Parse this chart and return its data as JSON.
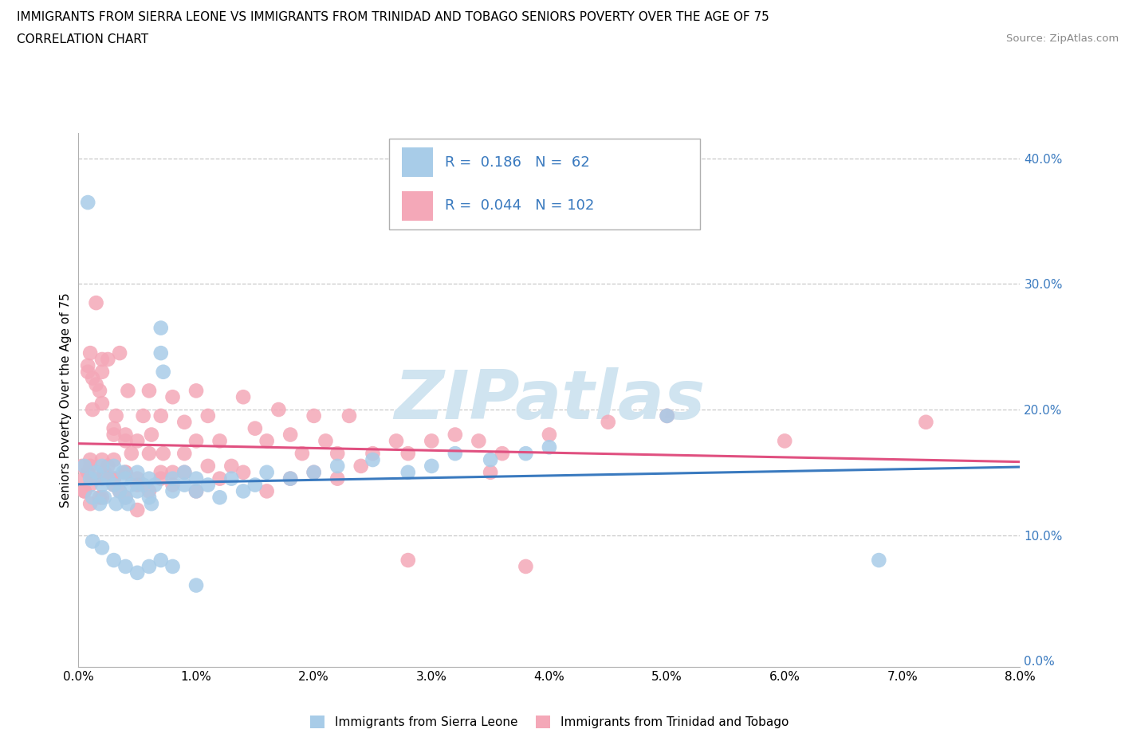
{
  "title_line1": "IMMIGRANTS FROM SIERRA LEONE VS IMMIGRANTS FROM TRINIDAD AND TOBAGO SENIORS POVERTY OVER THE AGE OF 75",
  "title_line2": "CORRELATION CHART",
  "source_text": "Source: ZipAtlas.com",
  "ylabel": "Seniors Poverty Over the Age of 75",
  "legend_label1": "Immigrants from Sierra Leone",
  "legend_label2": "Immigrants from Trinidad and Tobago",
  "R1": 0.186,
  "N1": 62,
  "R2": 0.044,
  "N2": 102,
  "color1": "#a8cce8",
  "color2": "#f4a8b8",
  "trend1_color": "#3a7abf",
  "trend2_color": "#e05080",
  "xlim": [
    0.0,
    0.08
  ],
  "ylim": [
    -0.005,
    0.42
  ],
  "xticks": [
    0.0,
    0.01,
    0.02,
    0.03,
    0.04,
    0.05,
    0.06,
    0.07,
    0.08
  ],
  "yticks": [
    0.0,
    0.1,
    0.2,
    0.3,
    0.4
  ],
  "watermark": "ZIPatlas",
  "watermark_color": "#d0e4f0",
  "sierra_leone_x": [
    0.0005,
    0.001,
    0.0012,
    0.0015,
    0.0018,
    0.002,
    0.002,
    0.0022,
    0.0025,
    0.003,
    0.003,
    0.0032,
    0.0035,
    0.0038,
    0.004,
    0.004,
    0.0042,
    0.0045,
    0.005,
    0.005,
    0.0055,
    0.006,
    0.006,
    0.0062,
    0.0065,
    0.007,
    0.007,
    0.0072,
    0.008,
    0.008,
    0.009,
    0.009,
    0.01,
    0.01,
    0.011,
    0.012,
    0.013,
    0.014,
    0.015,
    0.016,
    0.018,
    0.02,
    0.022,
    0.025,
    0.028,
    0.03,
    0.032,
    0.035,
    0.038,
    0.04,
    0.0008,
    0.0012,
    0.002,
    0.003,
    0.004,
    0.005,
    0.006,
    0.007,
    0.008,
    0.01,
    0.05,
    0.068
  ],
  "sierra_leone_y": [
    0.155,
    0.145,
    0.13,
    0.15,
    0.125,
    0.14,
    0.155,
    0.13,
    0.145,
    0.155,
    0.14,
    0.125,
    0.135,
    0.15,
    0.13,
    0.145,
    0.125,
    0.14,
    0.135,
    0.15,
    0.14,
    0.13,
    0.145,
    0.125,
    0.14,
    0.245,
    0.265,
    0.23,
    0.135,
    0.145,
    0.14,
    0.15,
    0.135,
    0.145,
    0.14,
    0.13,
    0.145,
    0.135,
    0.14,
    0.15,
    0.145,
    0.15,
    0.155,
    0.16,
    0.15,
    0.155,
    0.165,
    0.16,
    0.165,
    0.17,
    0.365,
    0.095,
    0.09,
    0.08,
    0.075,
    0.07,
    0.075,
    0.08,
    0.075,
    0.06,
    0.195,
    0.08
  ],
  "trinidad_x": [
    0.0003,
    0.0005,
    0.0008,
    0.001,
    0.001,
    0.0012,
    0.0015,
    0.0018,
    0.002,
    0.002,
    0.0022,
    0.0025,
    0.003,
    0.003,
    0.0032,
    0.0035,
    0.004,
    0.004,
    0.0042,
    0.0045,
    0.005,
    0.005,
    0.0055,
    0.006,
    0.006,
    0.0062,
    0.007,
    0.007,
    0.0072,
    0.008,
    0.008,
    0.009,
    0.009,
    0.01,
    0.01,
    0.011,
    0.011,
    0.012,
    0.013,
    0.014,
    0.015,
    0.016,
    0.017,
    0.018,
    0.019,
    0.02,
    0.021,
    0.022,
    0.023,
    0.025,
    0.027,
    0.028,
    0.03,
    0.032,
    0.034,
    0.036,
    0.038,
    0.04,
    0.045,
    0.05,
    0.0005,
    0.001,
    0.0015,
    0.002,
    0.0025,
    0.003,
    0.0035,
    0.004,
    0.005,
    0.006,
    0.007,
    0.008,
    0.009,
    0.01,
    0.012,
    0.014,
    0.016,
    0.018,
    0.02,
    0.022,
    0.024,
    0.0008,
    0.0012,
    0.0018,
    0.002,
    0.003,
    0.004,
    0.005,
    0.001,
    0.0005,
    0.001,
    0.0008,
    0.002,
    0.003,
    0.0015,
    0.002,
    0.003,
    0.004,
    0.06,
    0.072,
    0.035,
    0.028
  ],
  "trinidad_y": [
    0.155,
    0.145,
    0.15,
    0.16,
    0.14,
    0.2,
    0.22,
    0.13,
    0.145,
    0.16,
    0.15,
    0.24,
    0.16,
    0.14,
    0.195,
    0.245,
    0.18,
    0.15,
    0.215,
    0.165,
    0.175,
    0.14,
    0.195,
    0.165,
    0.215,
    0.18,
    0.15,
    0.195,
    0.165,
    0.21,
    0.15,
    0.19,
    0.165,
    0.175,
    0.215,
    0.155,
    0.195,
    0.175,
    0.155,
    0.21,
    0.185,
    0.175,
    0.2,
    0.18,
    0.165,
    0.195,
    0.175,
    0.165,
    0.195,
    0.165,
    0.175,
    0.165,
    0.175,
    0.18,
    0.175,
    0.165,
    0.075,
    0.18,
    0.19,
    0.195,
    0.135,
    0.155,
    0.145,
    0.13,
    0.155,
    0.145,
    0.135,
    0.15,
    0.145,
    0.135,
    0.145,
    0.14,
    0.15,
    0.135,
    0.145,
    0.15,
    0.135,
    0.145,
    0.15,
    0.145,
    0.155,
    0.235,
    0.225,
    0.215,
    0.205,
    0.185,
    0.175,
    0.12,
    0.125,
    0.135,
    0.245,
    0.23,
    0.23,
    0.18,
    0.285,
    0.24,
    0.145,
    0.13,
    0.175,
    0.19,
    0.15,
    0.08
  ]
}
